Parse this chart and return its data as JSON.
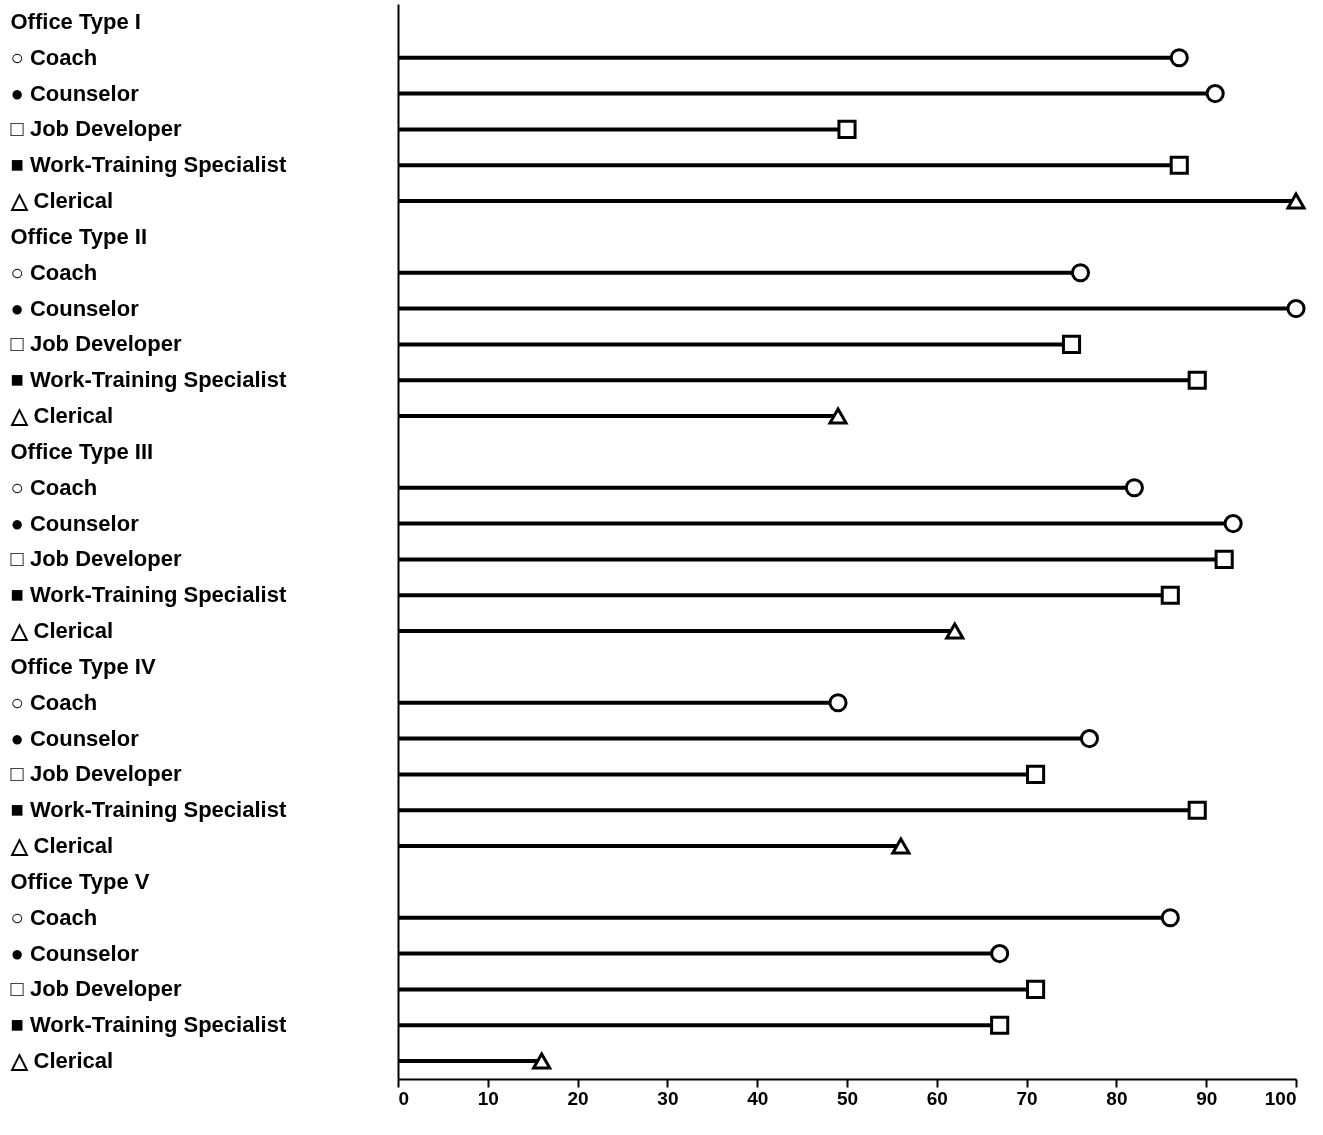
{
  "chart_data": {
    "type": "lollipop",
    "orientation": "horizontal",
    "categories": [
      "Office Type I",
      "○ Coach",
      "● Counselor",
      "□ Job Developer",
      "■ Work-Training Specialist",
      "△ Clerical",
      "Office Type II",
      "○ Coach",
      "● Counselor",
      "□ Job Developer",
      "■ Work-Training Specialist",
      "△ Clerical",
      "Office Type III",
      "○ Coach",
      "● Counselor",
      "□ Job Developer",
      "■ Work-Training Specialist",
      "△ Clerical",
      "Office Type IV",
      "○ Coach",
      "● Counselor",
      "□ Job Developer",
      "■ Work-Training Specialist",
      "△ Clerical",
      "Office Type V",
      "○ Coach",
      "● Counselor",
      "□ Job Developer",
      "■ Work-Training Specialist",
      "△ Clerical"
    ],
    "series": [
      {
        "color": "#000000",
        "marker": "circle",
        "values": [
          null,
          87,
          null,
          null,
          null,
          null,
          null,
          76,
          null,
          null,
          null,
          null,
          null,
          82,
          null,
          null,
          null,
          null,
          null,
          49,
          null,
          null,
          null,
          null,
          null,
          86,
          null,
          null,
          null,
          null
        ]
      },
      {
        "color": "#000000",
        "marker": "circle",
        "values": [
          null,
          null,
          91,
          null,
          null,
          null,
          null,
          null,
          100,
          null,
          null,
          null,
          null,
          null,
          93,
          null,
          null,
          null,
          null,
          null,
          77,
          null,
          null,
          null,
          null,
          null,
          67,
          null,
          null,
          null
        ]
      },
      {
        "color": "#000000",
        "marker": "square",
        "values": [
          null,
          null,
          null,
          50,
          null,
          null,
          null,
          null,
          null,
          75,
          null,
          null,
          null,
          null,
          null,
          92,
          null,
          null,
          null,
          null,
          null,
          71,
          null,
          null,
          null,
          null,
          null,
          71,
          null,
          null
        ]
      },
      {
        "color": "#000000",
        "marker": "square",
        "values": [
          null,
          null,
          null,
          null,
          87,
          null,
          null,
          null,
          null,
          null,
          89,
          null,
          null,
          null,
          null,
          null,
          86,
          null,
          null,
          null,
          null,
          null,
          89,
          null,
          null,
          null,
          null,
          null,
          67,
          null
        ]
      },
      {
        "color": "#000000",
        "marker": "triangle",
        "values": [
          null,
          null,
          null,
          null,
          null,
          100,
          null,
          null,
          null,
          null,
          null,
          49,
          null,
          null,
          null,
          null,
          null,
          62,
          null,
          null,
          null,
          null,
          null,
          56,
          null,
          null,
          null,
          null,
          null,
          16
        ]
      }
    ],
    "xlim": [
      0,
      100
    ],
    "xticks": [
      0,
      10,
      20,
      30,
      40,
      50,
      60,
      70,
      80,
      90,
      100
    ],
    "grid": false,
    "legend": false
  }
}
